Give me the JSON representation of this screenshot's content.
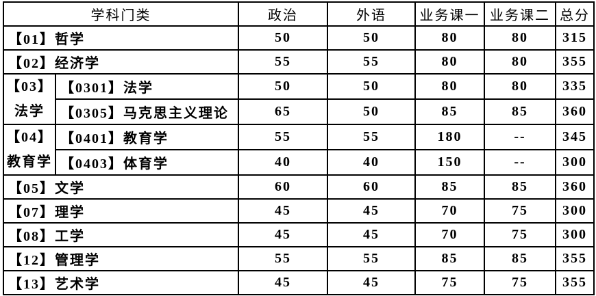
{
  "headers": [
    "学科门类",
    "政治",
    "外语",
    "业务课一",
    "业务课二",
    "总分"
  ],
  "rows": [
    {
      "cat": "【01】哲学",
      "v": [
        "50",
        "50",
        "80",
        "80",
        "315"
      ]
    },
    {
      "cat": "【02】经济学",
      "v": [
        "55",
        "55",
        "80",
        "80",
        "355"
      ]
    },
    {
      "group": "【03】",
      "group_name": "法学",
      "cat": "【0301】法学",
      "v": [
        "50",
        "50",
        "80",
        "80",
        "335"
      ]
    },
    {
      "cat": "【0305】马克思主义理论",
      "v": [
        "65",
        "50",
        "85",
        "85",
        "360"
      ]
    },
    {
      "group": "【04】",
      "group_name": "教育学",
      "cat": "【0401】教育学",
      "v": [
        "55",
        "55",
        "180",
        "--",
        "345"
      ]
    },
    {
      "cat": "【0403】体育学",
      "v": [
        "40",
        "40",
        "150",
        "--",
        "300"
      ]
    },
    {
      "cat": "【05】文学",
      "v": [
        "60",
        "60",
        "85",
        "85",
        "360"
      ]
    },
    {
      "cat": "【07】理学",
      "v": [
        "45",
        "45",
        "70",
        "75",
        "300"
      ]
    },
    {
      "cat": "【08】工学",
      "v": [
        "45",
        "45",
        "70",
        "75",
        "300"
      ]
    },
    {
      "cat": "【12】管理学",
      "v": [
        "55",
        "55",
        "85",
        "85",
        "355"
      ]
    },
    {
      "cat": "【13】艺术学",
      "v": [
        "45",
        "45",
        "75",
        "75",
        "355"
      ]
    }
  ]
}
